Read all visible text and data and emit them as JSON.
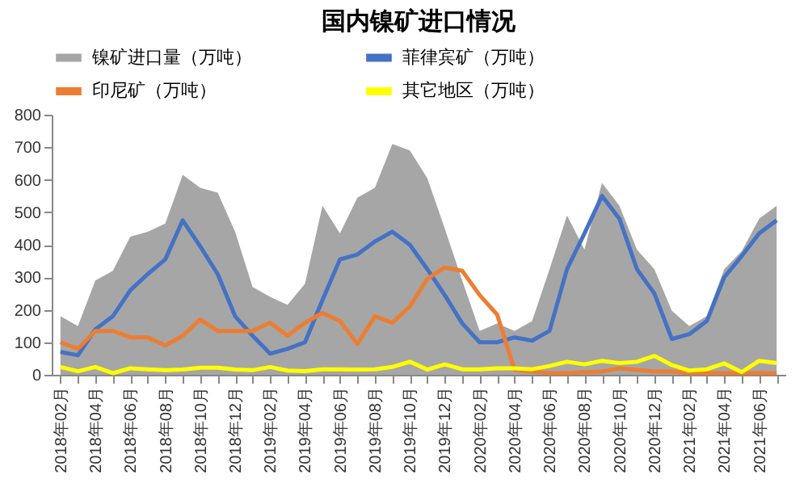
{
  "chart_data": {
    "type": "line",
    "title": "国内镍矿进口情况",
    "categories": [
      "2018年02月",
      null,
      "2018年04月",
      null,
      "2018年06月",
      null,
      "2018年08月",
      null,
      "2018年10月",
      null,
      "2018年12月",
      null,
      "2019年02月",
      null,
      "2019年04月",
      null,
      "2019年06月",
      null,
      "2019年08月",
      null,
      "2019年10月",
      null,
      "2019年12月",
      null,
      "2020年02月",
      null,
      "2020年04月",
      null,
      "2020年06月",
      null,
      "2020年08月",
      null,
      "2020年10月",
      null,
      "2020年12月",
      null,
      "2021年02月",
      null,
      "2021年04月",
      null,
      "2021年06月",
      null
    ],
    "series": [
      {
        "name": "镍矿进口量（万吨）",
        "type": "area",
        "color": "#a6a6a6",
        "values": [
          180,
          150,
          290,
          320,
          425,
          440,
          465,
          615,
          575,
          560,
          440,
          270,
          240,
          215,
          280,
          520,
          435,
          545,
          575,
          710,
          690,
          605,
          450,
          290,
          135,
          158,
          135,
          165,
          325,
          490,
          385,
          590,
          520,
          385,
          325,
          197,
          150,
          180,
          325,
          380,
          480,
          520
        ]
      },
      {
        "name": "菲律宾矿（万吨）",
        "color": "#4472c4",
        "values": [
          70,
          60,
          140,
          180,
          260,
          310,
          355,
          475,
          395,
          310,
          180,
          120,
          65,
          80,
          100,
          230,
          355,
          370,
          410,
          440,
          400,
          325,
          245,
          158,
          100,
          100,
          115,
          105,
          135,
          325,
          435,
          550,
          480,
          325,
          250,
          110,
          125,
          165,
          300,
          365,
          435,
          475
        ]
      },
      {
        "name": "印尼矿（万吨）",
        "color": "#ed7d31",
        "values": [
          100,
          80,
          135,
          135,
          115,
          115,
          90,
          120,
          170,
          135,
          135,
          135,
          160,
          120,
          160,
          190,
          165,
          95,
          180,
          160,
          210,
          295,
          330,
          320,
          245,
          185,
          15,
          10,
          5,
          5,
          8,
          10,
          20,
          15,
          10,
          10,
          5,
          5,
          5,
          5,
          5,
          5
        ]
      },
      {
        "name": "其它地区（万吨）",
        "color": "#ffff00",
        "values": [
          24,
          11,
          24,
          5,
          20,
          17,
          14,
          16,
          22,
          22,
          16,
          14,
          24,
          13,
          11,
          17,
          17,
          16,
          17,
          24,
          40,
          16,
          32,
          17,
          17,
          20,
          20,
          17,
          27,
          40,
          32,
          43,
          36,
          40,
          58,
          30,
          13,
          17,
          35,
          8,
          43,
          36
        ]
      }
    ],
    "ylim": [
      0,
      800
    ],
    "yticks": [
      0,
      100,
      200,
      300,
      400,
      500,
      600,
      700,
      800
    ],
    "legend": "top"
  }
}
